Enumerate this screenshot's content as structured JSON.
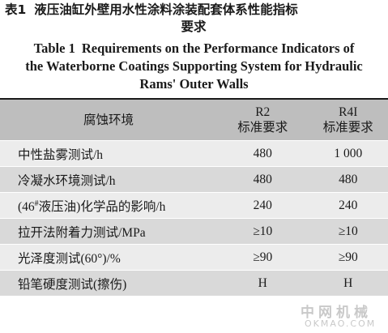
{
  "caption": {
    "cn_number": "表1",
    "cn_text_line1": "液压油缸外壁用水性涂料涂装配套体系性能指标",
    "cn_text_line2": "要求",
    "en_number": "Table 1",
    "en_text_line1": "Requirements on the Performance Indicators of",
    "en_text_line2": "the Waterborne Coatings Supporting System for Hydraulic",
    "en_text_line3": "Rams' Outer Walls"
  },
  "table": {
    "header": {
      "col1": "腐蚀环境",
      "col2_line1": "R2",
      "col2_line2": "标准要求",
      "col3_line1": "R4I",
      "col3_line2": "标准要求"
    },
    "rows": [
      {
        "test": "中性盐雾测试/h",
        "r2": "480",
        "r4i": "1 000"
      },
      {
        "test": "冷凝水环境测试/h",
        "r2": "480",
        "r4i": "480"
      },
      {
        "test_pre": "(46",
        "test_sup": "#",
        "test_post": "液压油)化学品的影响/h",
        "r2": "240",
        "r4i": "240"
      },
      {
        "test": "拉开法附着力测试/MPa",
        "r2": "≥10",
        "r4i": "≥10"
      },
      {
        "test": "光泽度测试(60°)/%",
        "r2": "≥90",
        "r4i": "≥90"
      },
      {
        "test": "铅笔硬度测试(擦伤)",
        "r2": "H",
        "r4i": "H"
      }
    ]
  },
  "watermark": {
    "cn": "中网机械",
    "en": "OKMAO.COM"
  }
}
